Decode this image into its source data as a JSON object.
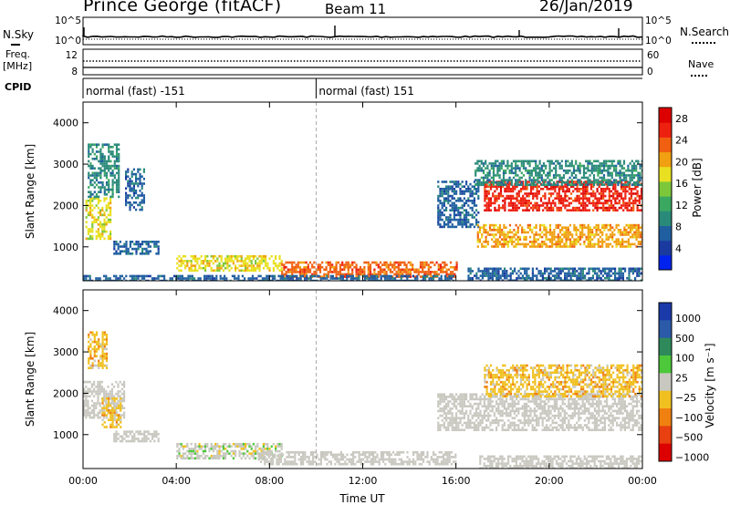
{
  "header": {
    "station": "Prince George (fitACF)",
    "beam": "Beam 11",
    "date": "26/Jan/2019"
  },
  "summary": {
    "nsky_label": "N.Sky",
    "nsearch_label": "N.Search",
    "noise_ticks": [
      "10^5",
      "10^0"
    ],
    "freq_label_line1": "Freq.",
    "freq_label_line2": "[MHz]",
    "freq_ticks": [
      "12",
      "8"
    ],
    "nave_label": "Nave",
    "nave_ticks": [
      "60",
      "0"
    ],
    "cpid_label": "CPID",
    "cpid_segments": [
      {
        "text": "normal (fast) -151",
        "start_hour": 0,
        "end_hour": 10.0
      },
      {
        "text": "normal (fast) 151",
        "start_hour": 10.0,
        "end_hour": 24
      }
    ]
  },
  "colors": {
    "power_scale": [
      "#0022ee",
      "#1a3aa0",
      "#1f5fa0",
      "#2a8a7a",
      "#3aa860",
      "#7cc83a",
      "#e8e020",
      "#f0a010",
      "#f06010",
      "#ee2010",
      "#dd0000"
    ],
    "velocity_scale": [
      "#1a3aaa",
      "#2a5aa8",
      "#2e8a5a",
      "#4cc83a",
      "#c8c8c0",
      "#f0c020",
      "#f08010",
      "#e84010",
      "#dd0000"
    ],
    "ground_scatter": "#c9c8c0"
  },
  "chart_data": [
    {
      "type": "heatmap",
      "name": "power-panel",
      "ylabel": "Slant Range [km]",
      "xlabel": "",
      "xlim": [
        0,
        24
      ],
      "ylim": [
        180,
        4500
      ],
      "yticks": [
        1000,
        2000,
        3000,
        4000
      ],
      "xticks": [
        "00:00",
        "04:00",
        "08:00",
        "12:00",
        "16:00",
        "20:00",
        "00:00"
      ],
      "colorbar_label": "Power [dB]",
      "colorbar_ticks": [
        "4",
        "8",
        "12",
        "16",
        "20",
        "24",
        "28"
      ],
      "colorbar_range": [
        0,
        30
      ],
      "scatter_regions": [
        {
          "t0": 0.1,
          "t1": 1.2,
          "r0": 1200,
          "r1": 2200,
          "value": 18
        },
        {
          "t0": 0.2,
          "t1": 1.5,
          "r0": 2200,
          "r1": 3500,
          "value": 9
        },
        {
          "t0": 1.3,
          "t1": 3.2,
          "r0": 850,
          "r1": 1150,
          "value": 8
        },
        {
          "t0": 1.8,
          "t1": 2.6,
          "r0": 1900,
          "r1": 2900,
          "value": 7
        },
        {
          "t0": 4.0,
          "t1": 8.5,
          "r0": 400,
          "r1": 800,
          "value": 17
        },
        {
          "t0": 8.5,
          "t1": 16.0,
          "r0": 300,
          "r1": 650,
          "value": 22
        },
        {
          "t0": 0.0,
          "t1": 16.0,
          "r0": 180,
          "r1": 320,
          "value": 6
        },
        {
          "t0": 15.2,
          "t1": 17.0,
          "r0": 1500,
          "r1": 2600,
          "value": 8
        },
        {
          "t0": 16.9,
          "t1": 24.0,
          "r0": 1000,
          "r1": 1550,
          "value": 20
        },
        {
          "t0": 17.2,
          "t1": 24.0,
          "r0": 1900,
          "r1": 2600,
          "value": 27
        },
        {
          "t0": 16.8,
          "t1": 24.0,
          "r0": 2500,
          "r1": 3100,
          "value": 10
        },
        {
          "t0": 16.5,
          "t1": 24.0,
          "r0": 180,
          "r1": 500,
          "value": 7
        }
      ]
    },
    {
      "type": "heatmap",
      "name": "velocity-panel",
      "ylabel": "Slant Range [km]",
      "xlabel": "Time UT",
      "xlim": [
        0,
        24
      ],
      "ylim": [
        180,
        4500
      ],
      "yticks": [
        1000,
        2000,
        3000,
        4000
      ],
      "xticks": [
        "00:00",
        "04:00",
        "08:00",
        "12:00",
        "16:00",
        "20:00",
        "00:00"
      ],
      "colorbar_label": "Velocity [m s⁻¹]",
      "colorbar_ticks": [
        "1000",
        "500",
        "100",
        "25",
        "−25",
        "−100",
        "−500",
        "−1000"
      ],
      "scatter_regions": [
        {
          "t0": 0.0,
          "t1": 1.8,
          "r0": 1400,
          "r1": 2300,
          "value": "ground"
        },
        {
          "t0": 0.8,
          "t1": 1.6,
          "r0": 1200,
          "r1": 1900,
          "value": -200
        },
        {
          "t0": 0.2,
          "t1": 1.0,
          "r0": 2600,
          "r1": 3500,
          "value": -150
        },
        {
          "t0": 1.3,
          "t1": 3.2,
          "r0": 850,
          "r1": 1100,
          "value": "ground"
        },
        {
          "t0": 4.0,
          "t1": 8.5,
          "r0": 400,
          "r1": 800,
          "value": -100
        },
        {
          "t0": 7.5,
          "t1": 16.0,
          "r0": 300,
          "r1": 600,
          "value": "ground"
        },
        {
          "t0": 15.2,
          "t1": 24.0,
          "r0": 1100,
          "r1": 2000,
          "value": "ground"
        },
        {
          "t0": 17.2,
          "t1": 24.0,
          "r0": 1900,
          "r1": 2700,
          "value": -300
        },
        {
          "t0": 17.0,
          "t1": 24.0,
          "r0": 180,
          "r1": 500,
          "value": "ground"
        }
      ]
    }
  ]
}
